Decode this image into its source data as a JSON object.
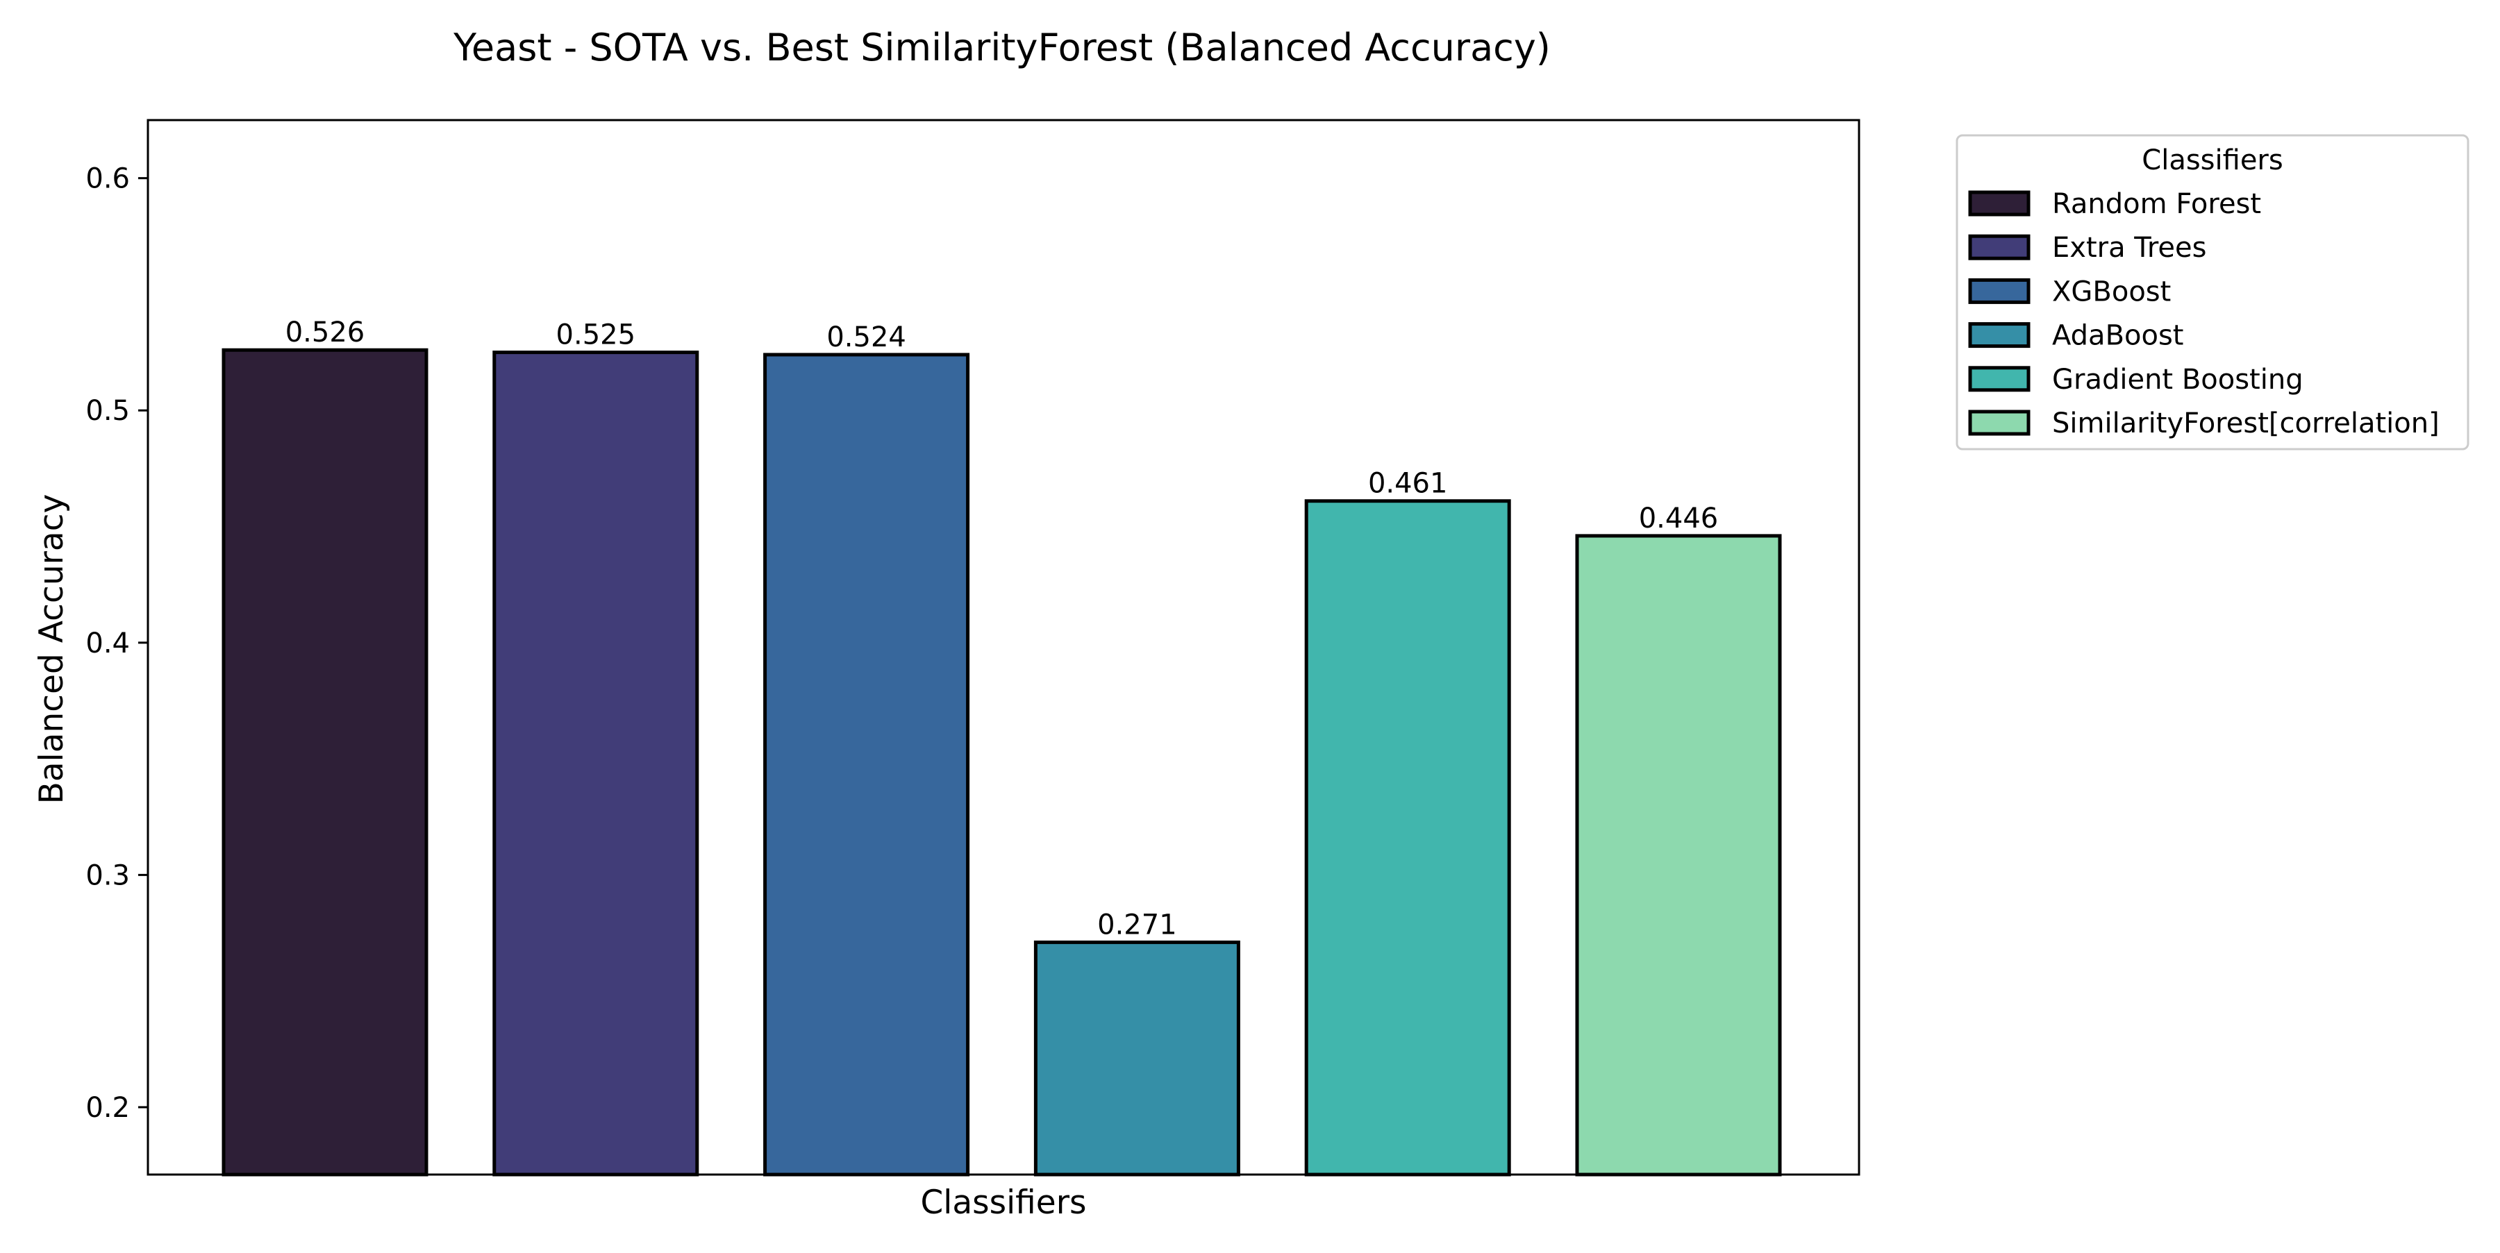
{
  "chart_data": {
    "type": "bar",
    "title": "Yeast - SOTA vs. Best SimilarityForest (Balanced Accuracy)",
    "xlabel": "Classifiers",
    "ylabel": "Balanced Accuracy",
    "ylim": [
      0.171,
      0.625
    ],
    "yticks": [
      0.2,
      0.3,
      0.4,
      0.5,
      0.6
    ],
    "ytick_labels": [
      "0.2",
      "0.3",
      "0.4",
      "0.5",
      "0.6"
    ],
    "grid": false,
    "legend": {
      "title": "Classifiers",
      "position": "outside-right-top"
    },
    "categories": [
      "Random Forest",
      "Extra Trees",
      "XGBoost",
      "AdaBoost",
      "Gradient Boosting",
      "SimilarityForest[correlation]"
    ],
    "values": [
      0.526,
      0.525,
      0.524,
      0.271,
      0.461,
      0.446
    ],
    "value_labels": [
      "0.526",
      "0.525",
      "0.524",
      "0.271",
      "0.461",
      "0.446"
    ],
    "colors": [
      "#2e1f37",
      "#413d78",
      "#37679c",
      "#358fa7",
      "#41b6ad",
      "#8dd9ae"
    ]
  }
}
